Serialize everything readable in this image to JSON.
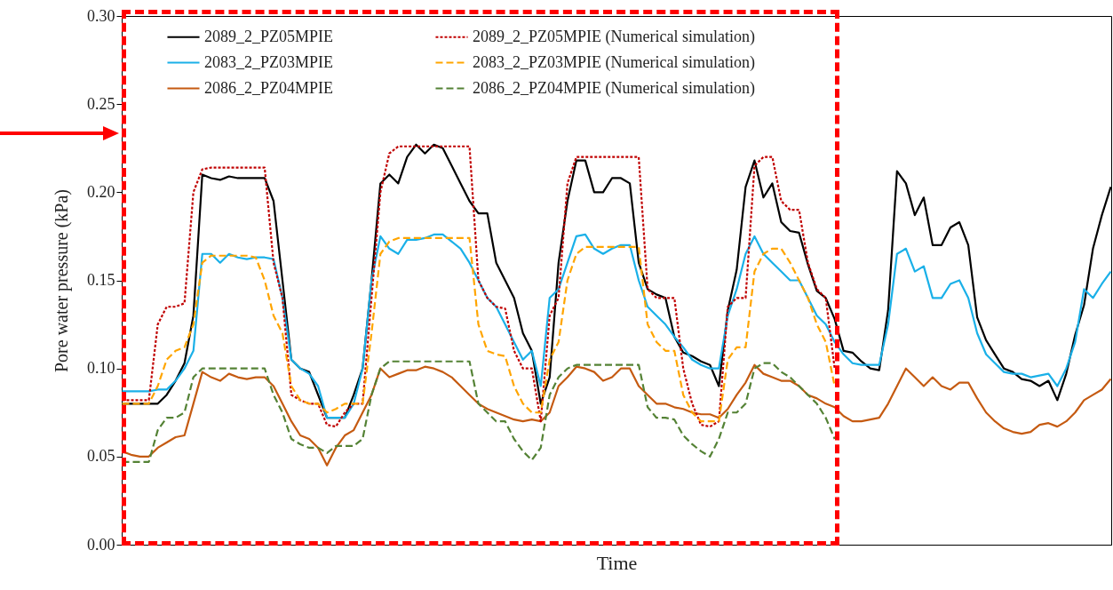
{
  "chart_data": {
    "type": "line",
    "xlabel": "Time",
    "ylabel": "Pore water pressure (kPa)",
    "categories": [
      null,
      null,
      null,
      null,
      null,
      null,
      null,
      null,
      null,
      null,
      null,
      null,
      null,
      null,
      null,
      null,
      null,
      null,
      null,
      null,
      null,
      null,
      null,
      null,
      null,
      null,
      null,
      null,
      null,
      null,
      null,
      null,
      null,
      null,
      null,
      null,
      null,
      null,
      null,
      null,
      null,
      null,
      null,
      null,
      null,
      null,
      null,
      null,
      null,
      null,
      null,
      null,
      null,
      null,
      null,
      null,
      null,
      null,
      null,
      null,
      null,
      null,
      null,
      null,
      null,
      null,
      null,
      null,
      null,
      null,
      null,
      null,
      null,
      null,
      null,
      null,
      null,
      null,
      null,
      null,
      null,
      null,
      null,
      null,
      null,
      null,
      null,
      null,
      null,
      null,
      null,
      null,
      null,
      null,
      null,
      null,
      null,
      null,
      null,
      null,
      null,
      null,
      null,
      null,
      null,
      null,
      null,
      null,
      null,
      null,
      null,
      null
    ],
    "ylim": [
      0,
      0.3
    ],
    "yticks": [
      {
        "value": 0,
        "label": "0.00"
      },
      {
        "value": 0.05,
        "label": "0.05"
      },
      {
        "value": 0.1,
        "label": "0.10"
      },
      {
        "value": 0.15,
        "label": "0.15"
      },
      {
        "value": 0.2,
        "label": "0.20"
      },
      {
        "value": 0.25,
        "label": "0.25"
      },
      {
        "value": 0.3,
        "label": "0.30"
      }
    ],
    "tick_labels": "y",
    "grid": false,
    "legend": "top",
    "series": [
      {
        "name": "2089_2_PZ05MPIE",
        "color": "#000000",
        "line_style": "solid",
        "values": [
          0.08,
          0.08,
          0.08,
          0.08,
          0.08,
          0.085,
          0.093,
          0.103,
          0.13,
          0.21,
          0.208,
          0.207,
          0.209,
          0.208,
          0.208,
          0.208,
          0.208,
          0.195,
          0.15,
          0.105,
          0.1,
          0.098,
          0.085,
          0.072,
          0.072,
          0.072,
          0.085,
          0.1,
          0.15,
          0.205,
          0.21,
          0.205,
          0.22,
          0.227,
          0.222,
          0.227,
          0.225,
          0.215,
          0.205,
          0.195,
          0.188,
          0.188,
          0.16,
          0.15,
          0.14,
          0.12,
          0.11,
          0.08,
          0.095,
          0.16,
          0.195,
          0.218,
          0.218,
          0.2,
          0.2,
          0.208,
          0.208,
          0.205,
          0.16,
          0.145,
          0.142,
          0.14,
          0.118,
          0.109,
          0.107,
          0.104,
          0.102,
          0.09,
          0.133,
          0.156,
          0.203,
          0.218,
          0.197,
          0.205,
          0.183,
          0.178,
          0.177,
          0.159,
          0.144,
          0.14,
          0.128,
          0.11,
          0.109,
          0.104,
          0.1,
          0.099,
          0.133,
          0.212,
          0.205,
          0.187,
          0.197,
          0.17,
          0.17,
          0.18,
          0.183,
          0.17,
          0.129,
          0.116,
          0.108,
          0.1,
          0.098,
          0.094,
          0.093,
          0.09,
          0.093,
          0.082,
          0.097,
          0.119,
          0.136,
          0.168,
          0.187,
          0.203
        ]
      },
      {
        "name": "2083_2_PZ03MPIE",
        "color": "#1ab0e8",
        "line_style": "solid",
        "values": [
          0.087,
          0.087,
          0.087,
          0.087,
          0.088,
          0.088,
          0.093,
          0.1,
          0.11,
          0.165,
          0.165,
          0.16,
          0.165,
          0.163,
          0.162,
          0.163,
          0.163,
          0.162,
          0.14,
          0.105,
          0.1,
          0.097,
          0.09,
          0.072,
          0.072,
          0.072,
          0.08,
          0.1,
          0.15,
          0.175,
          0.168,
          0.165,
          0.173,
          0.173,
          0.174,
          0.176,
          0.176,
          0.172,
          0.168,
          0.16,
          0.15,
          0.14,
          0.135,
          0.125,
          0.115,
          0.105,
          0.11,
          0.09,
          0.14,
          0.145,
          0.16,
          0.175,
          0.176,
          0.168,
          0.165,
          0.168,
          0.17,
          0.17,
          0.15,
          0.135,
          0.13,
          0.125,
          0.118,
          0.112,
          0.105,
          0.102,
          0.1,
          0.1,
          0.13,
          0.145,
          0.165,
          0.175,
          0.165,
          0.16,
          0.155,
          0.15,
          0.15,
          0.14,
          0.13,
          0.125,
          0.115,
          0.108,
          0.103,
          0.102,
          0.102,
          0.102,
          0.125,
          0.165,
          0.168,
          0.155,
          0.158,
          0.14,
          0.14,
          0.148,
          0.15,
          0.14,
          0.12,
          0.108,
          0.103,
          0.098,
          0.097,
          0.097,
          0.095,
          0.096,
          0.097,
          0.09,
          0.1,
          0.115,
          0.145,
          0.14,
          0.148,
          0.155
        ]
      },
      {
        "name": "2086_2_PZ04MPIE",
        "color": "#c55a11",
        "line_style": "solid",
        "values": [
          0.053,
          0.051,
          0.05,
          0.05,
          0.055,
          0.058,
          0.061,
          0.062,
          0.08,
          0.098,
          0.095,
          0.093,
          0.097,
          0.095,
          0.094,
          0.095,
          0.095,
          0.09,
          0.08,
          0.07,
          0.062,
          0.06,
          0.055,
          0.045,
          0.055,
          0.062,
          0.065,
          0.075,
          0.085,
          0.1,
          0.095,
          0.097,
          0.099,
          0.099,
          0.101,
          0.1,
          0.098,
          0.095,
          0.09,
          0.085,
          0.08,
          0.077,
          0.075,
          0.073,
          0.071,
          0.07,
          0.071,
          0.07,
          0.075,
          0.09,
          0.095,
          0.101,
          0.1,
          0.098,
          0.093,
          0.095,
          0.1,
          0.1,
          0.09,
          0.085,
          0.08,
          0.08,
          0.078,
          0.077,
          0.075,
          0.074,
          0.074,
          0.072,
          0.077,
          0.085,
          0.092,
          0.102,
          0.097,
          0.095,
          0.093,
          0.093,
          0.09,
          0.085,
          0.083,
          0.08,
          0.078,
          0.073,
          0.07,
          0.07,
          0.071,
          0.072,
          0.08,
          0.09,
          0.1,
          0.095,
          0.09,
          0.095,
          0.09,
          0.088,
          0.092,
          0.092,
          0.083,
          0.075,
          0.07,
          0.066,
          0.064,
          0.063,
          0.064,
          0.068,
          0.069,
          0.067,
          0.07,
          0.075,
          0.082,
          0.085,
          0.088,
          0.094
        ]
      },
      {
        "name": "2089_2_PZ05MPIE (Numerical simulation)",
        "color": "#c00000",
        "line_style": "dotted",
        "values": [
          0.082,
          0.082,
          0.082,
          0.082,
          0.125,
          0.135,
          0.135,
          0.137,
          0.2,
          0.213,
          0.214,
          0.214,
          0.214,
          0.214,
          0.214,
          0.214,
          0.214,
          0.16,
          0.14,
          0.085,
          0.082,
          0.08,
          0.08,
          0.068,
          0.067,
          0.075,
          0.08,
          0.08,
          0.14,
          0.2,
          0.222,
          0.226,
          0.226,
          0.226,
          0.226,
          0.226,
          0.226,
          0.226,
          0.226,
          0.226,
          0.15,
          0.14,
          0.135,
          0.134,
          0.11,
          0.1,
          0.1,
          0.07,
          0.13,
          0.14,
          0.205,
          0.22,
          0.22,
          0.22,
          0.22,
          0.22,
          0.22,
          0.22,
          0.22,
          0.145,
          0.14,
          0.14,
          0.14,
          0.1,
          0.08,
          0.068,
          0.067,
          0.07,
          0.135,
          0.14,
          0.14,
          0.215,
          0.22,
          0.22,
          0.195,
          0.19,
          0.19,
          0.16,
          0.145,
          0.14,
          0.1,
          null,
          null,
          null,
          null,
          null,
          null,
          null,
          null,
          null,
          null,
          null,
          null,
          null,
          null,
          null,
          null,
          null,
          null,
          null,
          null,
          null,
          null,
          null,
          null,
          null,
          null,
          null,
          null,
          null,
          null,
          null
        ]
      },
      {
        "name": "2083_2_PZ03MPIE (Numerical simulation)",
        "color": "#ffa500",
        "line_style": "dashed",
        "values": [
          0.08,
          0.08,
          0.08,
          0.08,
          0.09,
          0.105,
          0.11,
          0.112,
          0.125,
          0.16,
          0.164,
          0.164,
          0.164,
          0.164,
          0.164,
          0.163,
          0.15,
          0.13,
          0.12,
          0.09,
          0.082,
          0.08,
          0.08,
          0.075,
          0.077,
          0.08,
          0.08,
          0.08,
          0.12,
          0.165,
          0.172,
          0.174,
          0.174,
          0.174,
          0.174,
          0.174,
          0.174,
          0.174,
          0.174,
          0.174,
          0.125,
          0.11,
          0.108,
          0.107,
          0.09,
          0.08,
          0.075,
          0.075,
          0.105,
          0.115,
          0.15,
          0.165,
          0.169,
          0.169,
          0.169,
          0.169,
          0.169,
          0.169,
          0.169,
          0.125,
          0.115,
          0.11,
          0.11,
          0.085,
          0.075,
          0.07,
          0.07,
          0.07,
          0.105,
          0.112,
          0.112,
          0.155,
          0.165,
          0.168,
          0.168,
          0.16,
          0.15,
          0.14,
          0.125,
          0.115,
          0.09,
          null,
          null,
          null,
          null,
          null,
          null,
          null,
          null,
          null,
          null,
          null,
          null,
          null,
          null,
          null,
          null,
          null,
          null,
          null,
          null,
          null,
          null,
          null,
          null,
          null,
          null,
          null,
          null,
          null,
          null,
          null
        ]
      },
      {
        "name": "2086_2_PZ04MPIE (Numerical simulation)",
        "color": "#548235",
        "line_style": "dashed",
        "values": [
          0.047,
          0.047,
          0.047,
          0.047,
          0.065,
          0.072,
          0.072,
          0.075,
          0.095,
          0.1,
          0.1,
          0.1,
          0.1,
          0.1,
          0.1,
          0.1,
          0.1,
          0.085,
          0.075,
          0.06,
          0.057,
          0.055,
          0.055,
          0.052,
          0.056,
          0.056,
          0.056,
          0.06,
          0.085,
          0.1,
          0.104,
          0.104,
          0.104,
          0.104,
          0.104,
          0.104,
          0.104,
          0.104,
          0.104,
          0.104,
          0.08,
          0.075,
          0.07,
          0.07,
          0.06,
          0.053,
          0.048,
          0.055,
          0.085,
          0.095,
          0.1,
          0.102,
          0.102,
          0.102,
          0.102,
          0.102,
          0.102,
          0.102,
          0.102,
          0.078,
          0.072,
          0.072,
          0.071,
          0.062,
          0.057,
          0.053,
          0.05,
          0.06,
          0.075,
          0.075,
          0.08,
          0.1,
          0.103,
          0.103,
          0.098,
          0.095,
          0.09,
          0.085,
          0.08,
          0.072,
          0.06,
          null,
          null,
          null,
          null,
          null,
          null,
          null,
          null,
          null,
          null,
          null,
          null,
          null,
          null,
          null,
          null,
          null,
          null,
          null,
          null,
          null,
          null,
          null,
          null,
          null,
          null,
          null,
          null,
          null,
          null,
          null
        ]
      }
    ]
  }
}
